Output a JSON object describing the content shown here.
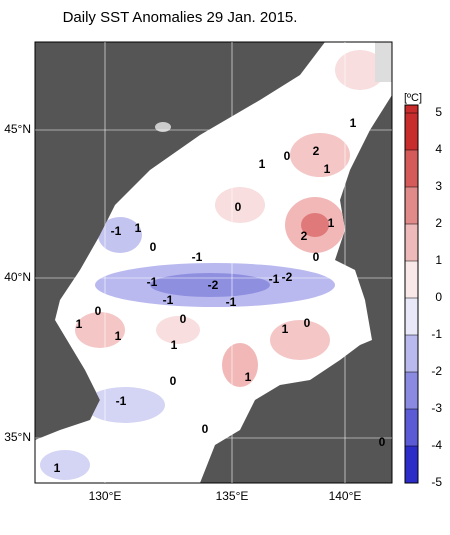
{
  "title": "Daily SST Anomalies 29 Jan. 2015.",
  "lon_labels": [
    "130°E",
    "135°E",
    "140°E"
  ],
  "lat_labels": [
    "45°N",
    "40°N",
    "35°N"
  ],
  "colorbar": {
    "unit": "[ºC]",
    "ticks": [
      5,
      4,
      3,
      2,
      1,
      0,
      -1,
      -2,
      -3,
      -4,
      -5
    ]
  },
  "contour_labels": [
    "1",
    "0",
    "2",
    "1",
    "1",
    "0",
    "2",
    "1",
    "0",
    "-1",
    "1",
    "0",
    "-1",
    "-1",
    "-1",
    "-2",
    "-2",
    "-1",
    "-1",
    "0",
    "1",
    "1",
    "0",
    "1",
    "1",
    "0",
    "1",
    "0",
    "-1",
    "0",
    "1",
    "0"
  ]
}
